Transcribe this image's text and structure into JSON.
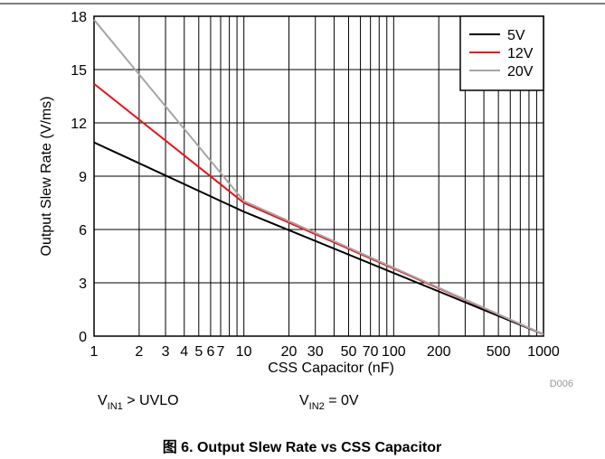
{
  "chart_data": {
    "type": "line",
    "x_label": "CSS Capacitor (nF)",
    "y_label": "Output Slew Rate (V/ms)",
    "xscale": "log",
    "xlim": [
      1,
      1000
    ],
    "xticks": [
      1,
      2,
      3,
      4,
      5,
      6,
      7,
      10,
      20,
      30,
      50,
      70,
      100,
      200,
      500,
      1000
    ],
    "minor_xticks": [
      8,
      9,
      40,
      60,
      80,
      90,
      300,
      400,
      600,
      700,
      800,
      900
    ],
    "ylim": [
      0,
      18
    ],
    "yticks": [
      0,
      3,
      6,
      9,
      12,
      15,
      18
    ],
    "grid": true,
    "legend": "upper right",
    "x": [
      1,
      10,
      1000
    ],
    "series": [
      {
        "name": "5V",
        "color": "#000000",
        "values": [
          10.9,
          7.0,
          0.1
        ]
      },
      {
        "name": "12V",
        "color": "#e8141a",
        "values": [
          14.2,
          7.5,
          0.1
        ]
      },
      {
        "name": "20V",
        "color": "#a6a6a6",
        "values": [
          17.8,
          7.6,
          0.1
        ]
      }
    ],
    "code": "D006",
    "annotations": [
      {
        "main": "V",
        "sub": "IN1",
        "rest": " > UVLO"
      },
      {
        "main": "V",
        "sub": "IN2",
        "rest": " = 0V"
      }
    ],
    "caption": "图 6. Output Slew Rate vs CSS Capacitor"
  }
}
